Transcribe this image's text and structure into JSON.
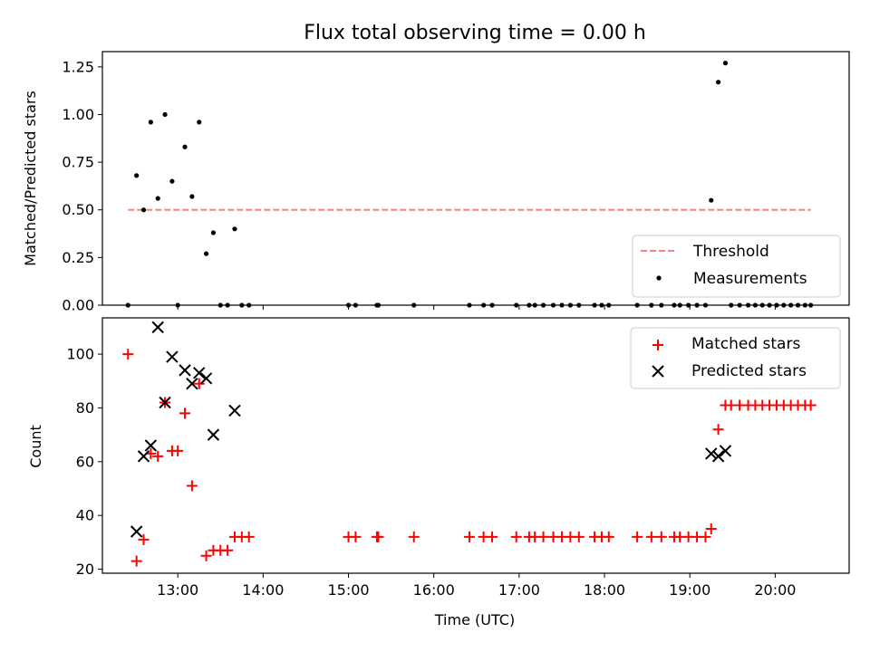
{
  "chart_data": [
    {
      "type": "scatter",
      "title": "Flux total observing time = 0.00 h",
      "ylabel": "Matched/Predicted stars",
      "xlabel": "",
      "xlim": [
        "12:07",
        "20:52"
      ],
      "ylim": [
        0,
        1.33
      ],
      "yticks": [
        0,
        0.25,
        0.5,
        0.75,
        1.0,
        1.25
      ],
      "ytick_labels": [
        "0.00",
        "0.25",
        "0.50",
        "0.75",
        "1.00",
        "1.25"
      ],
      "xticks": [
        "13:00",
        "14:00",
        "15:00",
        "16:00",
        "17:00",
        "18:00",
        "19:00",
        "20:00"
      ],
      "show_xtick_labels": false,
      "legend_position": "lower right",
      "threshold": {
        "name": "Threshold",
        "value": 0.5,
        "x_range": [
          "12:25",
          "20:25"
        ],
        "color": "#ff7f7f"
      },
      "series": [
        {
          "name": "Measurements",
          "marker": "dot",
          "color": "#000000",
          "points": [
            [
              "12:25",
              0
            ],
            [
              "12:31",
              0.68
            ],
            [
              "12:36",
              0.5
            ],
            [
              "12:41",
              0.96
            ],
            [
              "12:46",
              0.56
            ],
            [
              "12:51",
              1.0
            ],
            [
              "12:56",
              0.65
            ],
            [
              "13:00",
              0
            ],
            [
              "13:05",
              0.83
            ],
            [
              "13:10",
              0.57
            ],
            [
              "13:15",
              0.96
            ],
            [
              "13:20",
              0.27
            ],
            [
              "13:25",
              0.38
            ],
            [
              "13:30",
              0
            ],
            [
              "13:35",
              0
            ],
            [
              "13:40",
              0.4
            ],
            [
              "13:45",
              0
            ],
            [
              "13:50",
              0
            ],
            [
              "15:00",
              0
            ],
            [
              "15:05",
              0
            ],
            [
              "15:20",
              0
            ],
            [
              "15:21",
              0
            ],
            [
              "15:46",
              0
            ],
            [
              "16:25",
              0
            ],
            [
              "16:35",
              0
            ],
            [
              "16:41",
              0
            ],
            [
              "16:58",
              0
            ],
            [
              "17:07",
              0
            ],
            [
              "17:11",
              0
            ],
            [
              "17:17",
              0
            ],
            [
              "17:24",
              0
            ],
            [
              "17:30",
              0
            ],
            [
              "17:36",
              0
            ],
            [
              "17:42",
              0
            ],
            [
              "17:53",
              0
            ],
            [
              "17:58",
              0
            ],
            [
              "18:03",
              0
            ],
            [
              "18:23",
              0
            ],
            [
              "18:33",
              0
            ],
            [
              "18:40",
              0
            ],
            [
              "18:49",
              0
            ],
            [
              "18:53",
              0
            ],
            [
              "18:59",
              0
            ],
            [
              "19:05",
              0
            ],
            [
              "19:11",
              0
            ],
            [
              "19:15",
              0.55
            ],
            [
              "19:20",
              1.17
            ],
            [
              "19:25",
              1.27
            ],
            [
              "19:29",
              0
            ],
            [
              "19:35",
              0
            ],
            [
              "19:41",
              0
            ],
            [
              "19:46",
              0
            ],
            [
              "19:51",
              0
            ],
            [
              "19:56",
              0
            ],
            [
              "20:01",
              0
            ],
            [
              "20:06",
              0
            ],
            [
              "20:11",
              0
            ],
            [
              "20:16",
              0
            ],
            [
              "20:21",
              0
            ],
            [
              "20:25",
              0
            ]
          ]
        }
      ]
    },
    {
      "type": "scatter",
      "title": "",
      "ylabel": "Count",
      "xlabel": "Time (UTC)",
      "xlim": [
        "12:07",
        "20:52"
      ],
      "ylim": [
        18.5,
        113.5
      ],
      "yticks": [
        20,
        40,
        60,
        80,
        100
      ],
      "ytick_labels": [
        "20",
        "40",
        "60",
        "80",
        "100"
      ],
      "xticks": [
        "13:00",
        "14:00",
        "15:00",
        "16:00",
        "17:00",
        "18:00",
        "19:00",
        "20:00"
      ],
      "xtick_labels": [
        "13:00",
        "14:00",
        "15:00",
        "16:00",
        "17:00",
        "18:00",
        "19:00",
        "20:00"
      ],
      "legend_position": "upper right",
      "series": [
        {
          "name": "Matched stars",
          "marker": "plus",
          "color": "#ff0000",
          "points": [
            [
              "12:25",
              100
            ],
            [
              "12:31",
              23
            ],
            [
              "12:36",
              31
            ],
            [
              "12:41",
              63
            ],
            [
              "12:46",
              62
            ],
            [
              "12:51",
              82
            ],
            [
              "12:56",
              64
            ],
            [
              "13:00",
              64
            ],
            [
              "13:05",
              78
            ],
            [
              "13:10",
              51
            ],
            [
              "13:15",
              89
            ],
            [
              "13:20",
              25
            ],
            [
              "13:25",
              27
            ],
            [
              "13:30",
              27
            ],
            [
              "13:35",
              27
            ],
            [
              "13:40",
              32
            ],
            [
              "13:45",
              32
            ],
            [
              "13:50",
              32
            ],
            [
              "15:00",
              32
            ],
            [
              "15:05",
              32
            ],
            [
              "15:20",
              32
            ],
            [
              "15:21",
              32
            ],
            [
              "15:46",
              32
            ],
            [
              "16:25",
              32
            ],
            [
              "16:35",
              32
            ],
            [
              "16:41",
              32
            ],
            [
              "16:58",
              32
            ],
            [
              "17:07",
              32
            ],
            [
              "17:11",
              32
            ],
            [
              "17:17",
              32
            ],
            [
              "17:24",
              32
            ],
            [
              "17:30",
              32
            ],
            [
              "17:36",
              32
            ],
            [
              "17:42",
              32
            ],
            [
              "17:53",
              32
            ],
            [
              "17:58",
              32
            ],
            [
              "18:03",
              32
            ],
            [
              "18:23",
              32
            ],
            [
              "18:33",
              32
            ],
            [
              "18:40",
              32
            ],
            [
              "18:49",
              32
            ],
            [
              "18:53",
              32
            ],
            [
              "18:59",
              32
            ],
            [
              "19:05",
              32
            ],
            [
              "19:11",
              32
            ],
            [
              "19:15",
              35
            ],
            [
              "19:20",
              72
            ],
            [
              "19:25",
              81
            ],
            [
              "19:29",
              81
            ],
            [
              "19:35",
              81
            ],
            [
              "19:41",
              81
            ],
            [
              "19:46",
              81
            ],
            [
              "19:51",
              81
            ],
            [
              "19:56",
              81
            ],
            [
              "20:01",
              81
            ],
            [
              "20:06",
              81
            ],
            [
              "20:11",
              81
            ],
            [
              "20:16",
              81
            ],
            [
              "20:21",
              81
            ],
            [
              "20:25",
              81
            ]
          ]
        },
        {
          "name": "Predicted stars",
          "marker": "x",
          "color": "#000000",
          "points": [
            [
              "12:31",
              34
            ],
            [
              "12:36",
              62
            ],
            [
              "12:41",
              66
            ],
            [
              "12:46",
              110
            ],
            [
              "12:51",
              82
            ],
            [
              "12:56",
              99
            ],
            [
              "13:05",
              94
            ],
            [
              "13:10",
              89
            ],
            [
              "13:15",
              93
            ],
            [
              "13:20",
              91
            ],
            [
              "13:25",
              70
            ],
            [
              "13:40",
              79
            ],
            [
              "19:15",
              63
            ],
            [
              "19:20",
              62
            ],
            [
              "19:25",
              64
            ]
          ]
        }
      ]
    }
  ]
}
